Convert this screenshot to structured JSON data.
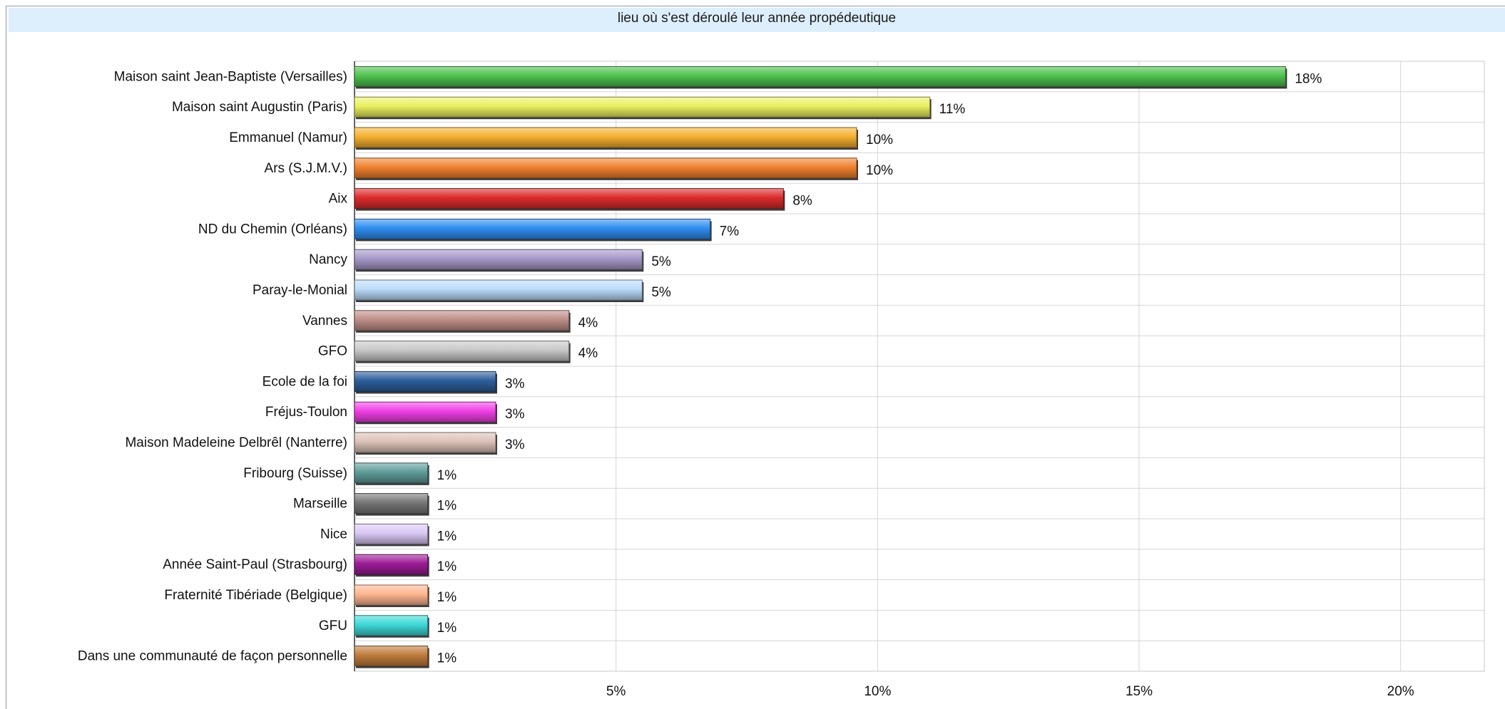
{
  "chart_data": {
    "type": "bar",
    "orientation": "horizontal",
    "title": "lieu où s'est déroulé leur année propédeutique",
    "categories": [
      "Maison saint Jean-Baptiste (Versailles)",
      "Maison saint Augustin (Paris)",
      "Emmanuel (Namur)",
      "Ars (S.J.M.V.)",
      "Aix",
      "ND du Chemin (Orléans)",
      "Nancy",
      "Paray-le-Monial",
      "Vannes",
      "GFO",
      "Ecole de la foi",
      "Fréjus-Toulon",
      "Maison Madeleine Delbrêl (Nanterre)",
      "Fribourg (Suisse)",
      "Marseille",
      "Nice",
      "Année Saint-Paul (Strasbourg)",
      "Fraternité Tibériade (Belgique)",
      "GFU",
      "Dans une communauté de façon personnelle"
    ],
    "values": [
      17.8,
      11.0,
      9.6,
      9.6,
      8.2,
      6.8,
      5.5,
      5.5,
      4.1,
      4.1,
      2.7,
      2.7,
      2.7,
      1.4,
      1.4,
      1.4,
      1.4,
      1.4,
      1.4,
      1.4
    ],
    "value_labels": [
      "18%",
      "11%",
      "10%",
      "10%",
      "8%",
      "7%",
      "5%",
      "5%",
      "4%",
      "4%",
      "3%",
      "3%",
      "3%",
      "1%",
      "1%",
      "1%",
      "1%",
      "1%",
      "1%",
      "1%"
    ],
    "colors": [
      "#4fc24f",
      "#eaf060",
      "#f5b030",
      "#f0822e",
      "#dc2b2b",
      "#2f8ef0",
      "#a698c8",
      "#bcdcfa",
      "#bf8f88",
      "#c8c8c8",
      "#2d5f9c",
      "#f040e6",
      "#dcc2b8",
      "#5f9c9a",
      "#767676",
      "#dac8f4",
      "#9c1c96",
      "#ffb690",
      "#3ed8d8",
      "#c07c3c"
    ],
    "xticks": [
      5,
      10,
      15,
      20
    ],
    "xtick_labels": [
      "5%",
      "10%",
      "15%",
      "20%"
    ],
    "xlim": [
      0,
      21.6
    ],
    "grid": true,
    "xlabel": "",
    "ylabel": ""
  }
}
